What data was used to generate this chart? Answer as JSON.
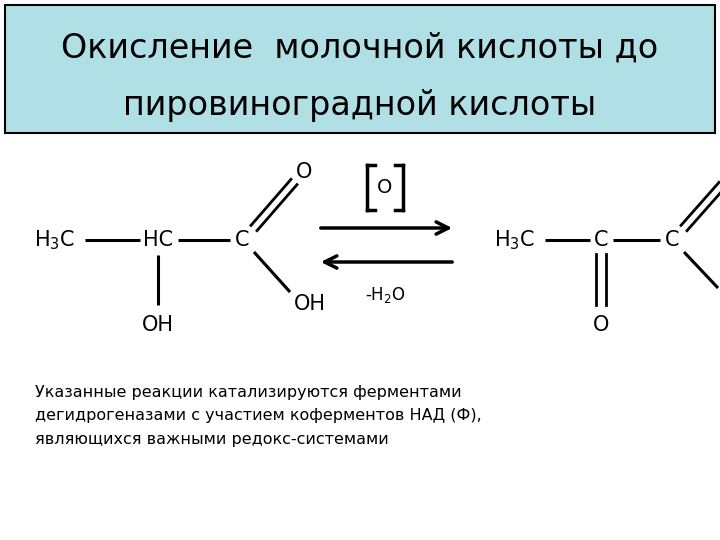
{
  "title_line1": "Окисление  молочной кислоты до",
  "title_line2": "пировиноградной кислоты",
  "title_bg": "#b0e0e6",
  "title_border": "#000000",
  "background": "#ffffff",
  "footer_text": "Указанные реакции катализируются ферментами\nдегидрогеназами с участием коферментов НАД (Ф),\nявляющихся важными редокс-системами",
  "footer_fontsize": 11.5,
  "title_fontsize": 24
}
